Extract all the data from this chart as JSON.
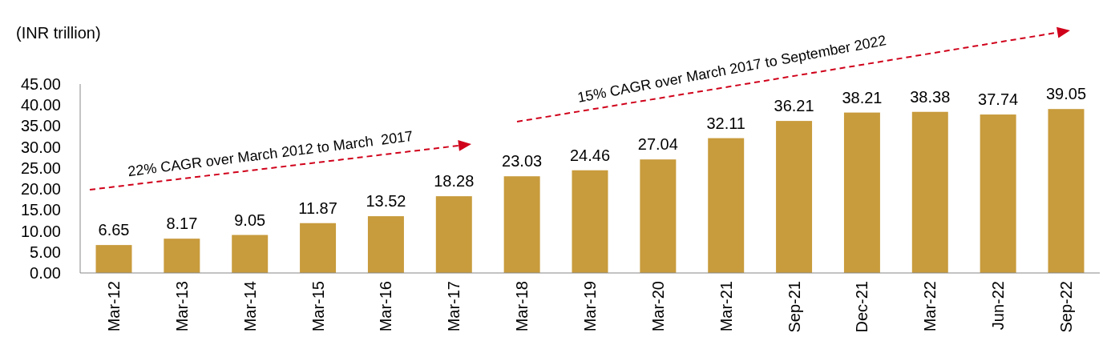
{
  "chart_data": {
    "type": "bar",
    "ylabel": "(INR trillion)",
    "categories": [
      "Mar-12",
      "Mar-13",
      "Mar-14",
      "Mar-15",
      "Mar-16",
      "Mar-17",
      "Mar-18",
      "Mar-19",
      "Mar-20",
      "Mar-21",
      "Sep-21",
      "Dec-21",
      "Mar-22",
      "Jun-22",
      "Sep-22"
    ],
    "values": [
      6.65,
      8.17,
      9.05,
      11.87,
      13.52,
      18.28,
      23.03,
      24.46,
      27.04,
      32.11,
      36.21,
      38.21,
      38.38,
      37.74,
      39.05
    ],
    "color": "#c89b3c",
    "data_labels": true,
    "ylim": [
      0,
      45
    ],
    "yticks": [
      {
        "value": 0,
        "label": "0.00"
      },
      {
        "value": 5,
        "label": "5.00"
      },
      {
        "value": 10,
        "label": "10.00"
      },
      {
        "value": 15,
        "label": "15.00"
      },
      {
        "value": 20,
        "label": "20.00"
      },
      {
        "value": 25,
        "label": "25.00"
      },
      {
        "value": 30,
        "label": "30.00"
      },
      {
        "value": 35,
        "label": "35.00"
      },
      {
        "value": 40,
        "label": "40.00"
      },
      {
        "value": 45,
        "label": "45.00"
      }
    ],
    "annotations": [
      "22% CAGR over March 2012 to March  2017",
      "15% CAGR over March 2017 to September 2022"
    ]
  }
}
